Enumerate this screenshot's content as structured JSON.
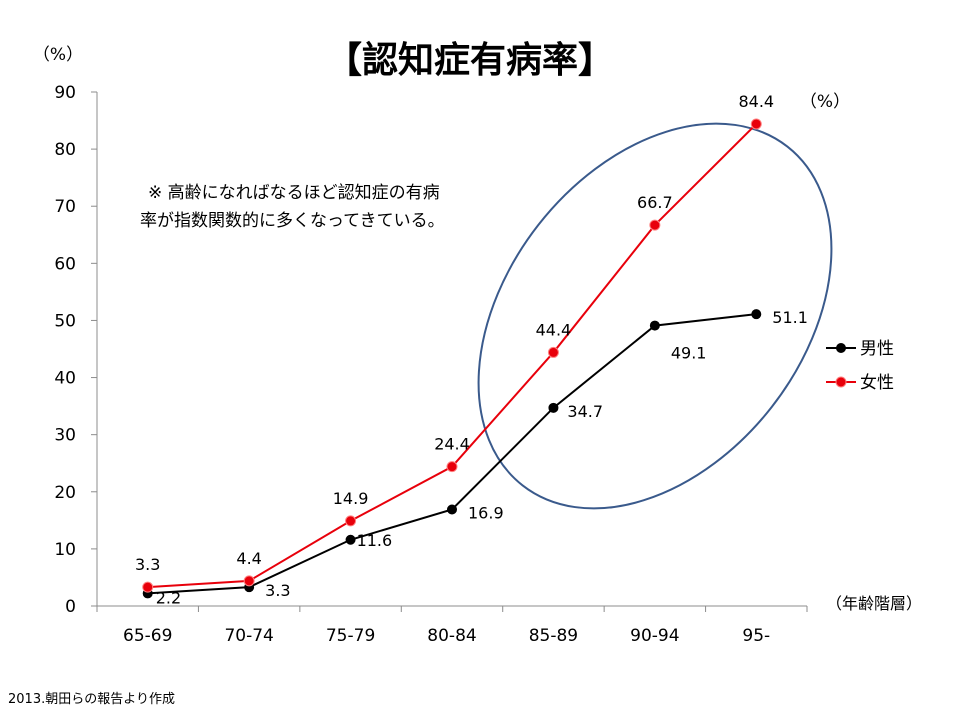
{
  "chart_data": {
    "type": "line",
    "title": "【認知症有病率】",
    "y_unit": "（%）",
    "x_unit": "（年齢階層）",
    "series_unit": "（%）",
    "categories": [
      "65-69",
      "70-74",
      "75-79",
      "80-84",
      "85-89",
      "90-94",
      "95-"
    ],
    "series": [
      {
        "name": "男性",
        "color": "#000000",
        "values": [
          2.2,
          3.3,
          11.6,
          16.9,
          34.7,
          49.1,
          51.1
        ]
      },
      {
        "name": "女性",
        "color": "#e8000b",
        "values": [
          3.3,
          4.4,
          14.9,
          24.4,
          44.4,
          66.7,
          84.4
        ]
      }
    ],
    "ylim": [
      0,
      90
    ],
    "yticks": [
      0,
      10,
      20,
      30,
      40,
      50,
      60,
      70,
      80,
      90
    ],
    "grid": false,
    "legend_position": "right",
    "annotation_lines": [
      "※ 高齢になればなるほど認知症の有病",
      "率が指数関数的に多くなってきている。"
    ],
    "highlight_color": "#3a5a8c"
  },
  "source": "2013.朝田らの報告より作成"
}
